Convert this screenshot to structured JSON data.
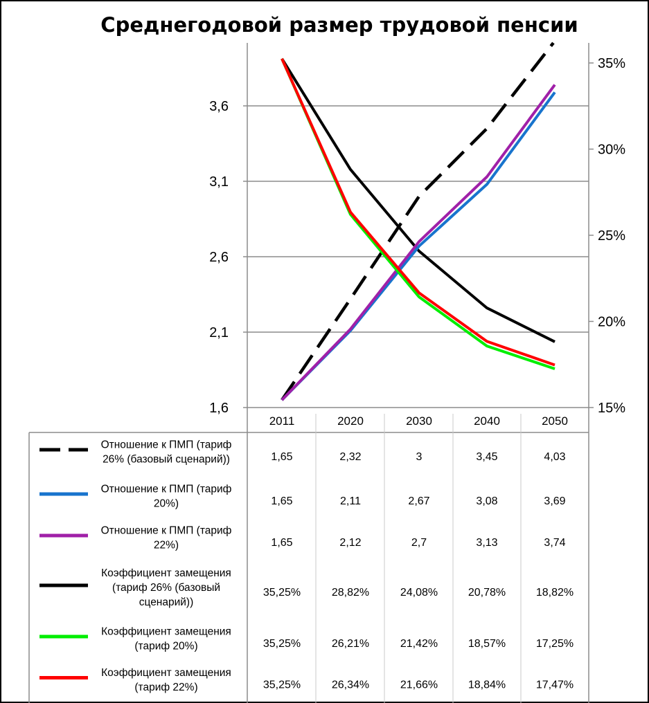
{
  "chart_data": {
    "type": "line",
    "title": "Среднегодовой размер трудовой пенсии",
    "categories": [
      "2011",
      "2020",
      "2030",
      "2040",
      "2050"
    ],
    "y_left": {
      "ticks": [
        "1,6",
        "2,1",
        "2,6",
        "3,1",
        "3,6"
      ],
      "ylim": [
        1.6,
        4.03
      ]
    },
    "y_right": {
      "ticks": [
        "15%",
        "20%",
        "25%",
        "30%",
        "35%"
      ],
      "ylim": [
        15,
        36.1
      ]
    },
    "grid": "horizontal",
    "legend": "data-table",
    "series": [
      {
        "name": "Отношение к ПМП (тариф 26% (базовый сценарий))",
        "legend_lines": [
          "Отношение к ПМП (тариф",
          "26% (базовый сценарий))"
        ],
        "axis": "left",
        "color": "#000000",
        "dash": true,
        "values": [
          1.65,
          2.32,
          3,
          3.45,
          4.03
        ],
        "labels": [
          "1,65",
          "2,32",
          "3",
          "3,45",
          "4,03"
        ]
      },
      {
        "name": "Отношение к ПМП (тариф 20%)",
        "legend_lines": [
          "Отношение к ПМП (тариф",
          "20%)"
        ],
        "axis": "left",
        "color": "#1874CD",
        "dash": false,
        "values": [
          1.65,
          2.11,
          2.67,
          3.08,
          3.69
        ],
        "labels": [
          "1,65",
          "2,11",
          "2,67",
          "3,08",
          "3,69"
        ]
      },
      {
        "name": "Отношение к ПМП (тариф 22%)",
        "legend_lines": [
          "Отношение к ПМП (тариф",
          "22%)"
        ],
        "axis": "left",
        "color": "#A020A8",
        "dash": false,
        "values": [
          1.65,
          2.12,
          2.7,
          3.13,
          3.74
        ],
        "labels": [
          "1,65",
          "2,12",
          "2,7",
          "3,13",
          "3,74"
        ]
      },
      {
        "name": "Коэффициент замещения (тариф 26% (базовый сценарий))",
        "legend_lines": [
          "Коэффициент замещения",
          "(тариф 26% (базовый",
          "сценарий))"
        ],
        "axis": "right",
        "color": "#000000",
        "dash": false,
        "values": [
          35.25,
          28.82,
          24.08,
          20.78,
          18.82
        ],
        "labels": [
          "35,25%",
          "28,82%",
          "24,08%",
          "20,78%",
          "18,82%"
        ]
      },
      {
        "name": "Коэффициент замещения (тариф 20%)",
        "legend_lines": [
          "Коэффициент замещения",
          "(тариф 20%)"
        ],
        "axis": "right",
        "color": "#00EE00",
        "dash": false,
        "values": [
          35.25,
          26.21,
          21.42,
          18.57,
          17.25
        ],
        "labels": [
          "35,25%",
          "26,21%",
          "21,42%",
          "18,57%",
          "17,25%"
        ]
      },
      {
        "name": "Коэффициент замещения (тариф 22%)",
        "legend_lines": [
          "Коэффициент замещения",
          "(тариф 22%)"
        ],
        "axis": "right",
        "color": "#FF0000",
        "dash": false,
        "values": [
          35.25,
          26.34,
          21.66,
          18.84,
          17.47
        ],
        "labels": [
          "35,25%",
          "26,34%",
          "21,66%",
          "18,84%",
          "17,47%"
        ]
      }
    ]
  }
}
